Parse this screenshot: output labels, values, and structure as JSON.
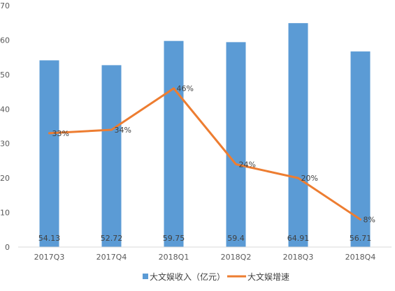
{
  "chart_data": {
    "type": "bar",
    "categories": [
      "2017Q3",
      "2017Q4",
      "2018Q1",
      "2018Q2",
      "2018Q3",
      "2018Q4"
    ],
    "series": [
      {
        "name": "大文娱收入（亿元）",
        "type": "bar",
        "color": "#5b9bd5",
        "values": [
          54.13,
          52.72,
          59.75,
          59.4,
          64.91,
          56.71
        ],
        "labels": [
          "54.13",
          "52.72",
          "59.75",
          "59.4",
          "64.91",
          "56.71"
        ]
      },
      {
        "name": "大文娱增速",
        "type": "line",
        "color": "#ed7d31",
        "values": [
          33,
          34,
          46,
          24,
          20,
          8
        ],
        "labels": [
          "33%",
          "34%",
          "46%",
          "24%",
          "20%",
          "8%"
        ]
      }
    ],
    "y_axis": {
      "min": 0,
      "max": 70,
      "ticks": [
        "0",
        "10",
        "20",
        "30",
        "40",
        "50",
        "60",
        "70"
      ]
    },
    "grid": false,
    "legend": "bottom"
  }
}
